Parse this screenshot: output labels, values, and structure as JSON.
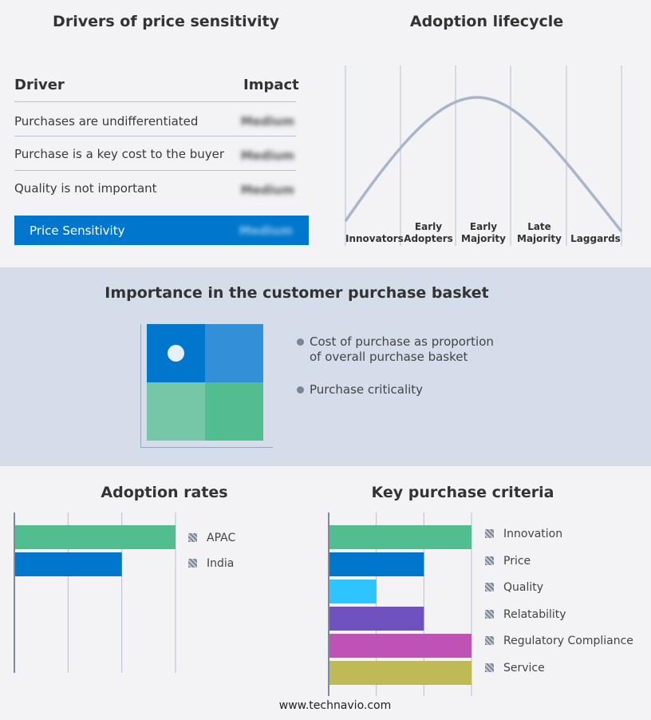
{
  "drivers": {
    "title": "Drivers of price sensitivity",
    "col_driver": "Driver",
    "col_impact": "Impact",
    "rows": [
      {
        "driver": "Purchases are undifferentiated",
        "impact": "Medium"
      },
      {
        "driver": "Purchase is a key cost to the buyer",
        "impact": "Medium"
      },
      {
        "driver": "Quality is not important",
        "impact": "Medium"
      }
    ],
    "summary": {
      "label": "Price Sensitivity",
      "impact": "Medium"
    },
    "accent": "#0077cc"
  },
  "lifecycle": {
    "title": "Adoption lifecycle",
    "stages": [
      "Innovators",
      "Early Adopters",
      "Early Majority",
      "Late Majority",
      "Laggards"
    ],
    "curve_color": "#a9b6c9"
  },
  "basket": {
    "title": "Importance in the customer purchase basket",
    "legend": [
      "Cost of purchase as proportion of overall purchase basket",
      "Purchase criticality"
    ],
    "quadrant_colors": [
      "#0077cc",
      "#3390d8",
      "#76c6a8",
      "#52be8f"
    ],
    "marker": "top-left quadrant"
  },
  "footer": "www.technavio.com",
  "chart_data": [
    {
      "type": "bar",
      "orientation": "horizontal",
      "title": "Adoption rates",
      "categories": [
        "APAC",
        "India"
      ],
      "values": [
        3,
        2
      ],
      "xlim": [
        0,
        3
      ],
      "grid": true,
      "legend": "right",
      "colors": [
        "#52be8f",
        "#0077cc"
      ]
    },
    {
      "type": "bar",
      "orientation": "horizontal",
      "title": "Key purchase criteria",
      "categories": [
        "Innovation",
        "Price",
        "Quality",
        "Relatability",
        "Regulatory Compliance",
        "Service"
      ],
      "values": [
        3,
        2,
        1,
        2,
        3,
        3
      ],
      "xlim": [
        0,
        3
      ],
      "grid": true,
      "legend": "right",
      "colors": [
        "#52be8f",
        "#0077cc",
        "#2ec4ff",
        "#6f52bd",
        "#bf52b5",
        "#bfba55"
      ]
    }
  ]
}
